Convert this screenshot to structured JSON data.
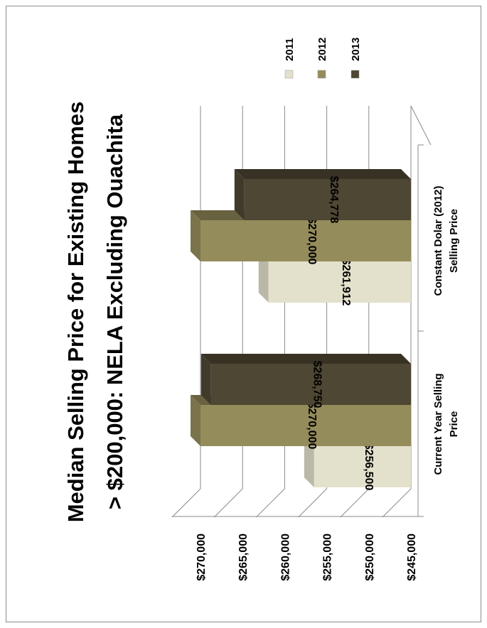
{
  "chart_data": {
    "type": "bar",
    "orientation": "horizontal-3d",
    "title": "Median Selling Price for Existing Homes",
    "subtitle": "> $200,000:  NELA Excluding Ouachita",
    "categories": [
      "Current Year Selling Price",
      "Constant Dolar (2012) Selling Price"
    ],
    "series": [
      {
        "name": "2011",
        "values": [
          256500,
          261912
        ],
        "labels": [
          "$256,500",
          "$261,912"
        ],
        "color": "#e3e0cc"
      },
      {
        "name": "2012",
        "values": [
          270000,
          270000
        ],
        "labels": [
          "$270,000",
          "$270,000"
        ],
        "color": "#958c5c"
      },
      {
        "name": "2013",
        "values": [
          268750,
          264778
        ],
        "labels": [
          "$268,750",
          "$264,778"
        ],
        "color": "#4e4733"
      }
    ],
    "ylim": [
      245000,
      270000
    ],
    "ticks": [
      {
        "value": 245000,
        "label": "$245,000"
      },
      {
        "value": 250000,
        "label": "$250,000"
      },
      {
        "value": 255000,
        "label": "$255,000"
      },
      {
        "value": 260000,
        "label": "$260,000"
      },
      {
        "value": 265000,
        "label": "$265,000"
      },
      {
        "value": 270000,
        "label": "$270,000"
      }
    ],
    "legend_position": "top-right",
    "grid": true,
    "rotation": "chart rotated 90 degrees counter-clockwise"
  }
}
